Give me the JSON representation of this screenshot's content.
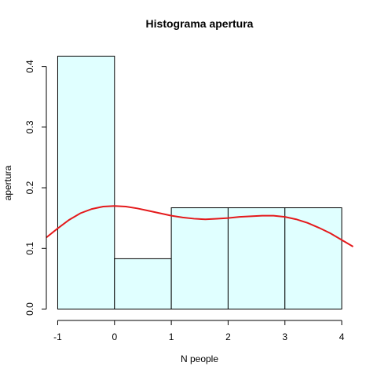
{
  "chart_data": {
    "type": "bar",
    "title": "Histograma  apertura",
    "xlabel": "N people",
    "ylabel": "apertura",
    "bins": [
      {
        "from": -1,
        "to": 0,
        "value": 0.417
      },
      {
        "from": 0,
        "to": 1,
        "value": 0.083
      },
      {
        "from": 1,
        "to": 2,
        "value": 0.167
      },
      {
        "from": 2,
        "to": 3,
        "value": 0.167
      },
      {
        "from": 3,
        "to": 4,
        "value": 0.167
      }
    ],
    "x_ticks": [
      "-1",
      "0",
      "1",
      "2",
      "3",
      "4"
    ],
    "y_ticks": [
      "0.0",
      "0.1",
      "0.2",
      "0.3",
      "0.4"
    ],
    "xlim": [
      -1.2,
      4.22
    ],
    "ylim": [
      0,
      0.417
    ],
    "density_curve": {
      "color": "#e41a1c",
      "x": [
        -1.2,
        -1.0,
        -0.8,
        -0.6,
        -0.4,
        -0.2,
        0.0,
        0.2,
        0.4,
        0.6,
        0.8,
        1.0,
        1.2,
        1.4,
        1.6,
        1.8,
        2.0,
        2.2,
        2.4,
        2.6,
        2.8,
        3.0,
        3.2,
        3.4,
        3.6,
        3.8,
        4.0,
        4.2
      ],
      "y": [
        0.118,
        0.133,
        0.147,
        0.158,
        0.165,
        0.169,
        0.17,
        0.169,
        0.166,
        0.162,
        0.158,
        0.154,
        0.151,
        0.149,
        0.148,
        0.149,
        0.15,
        0.152,
        0.153,
        0.154,
        0.154,
        0.152,
        0.148,
        0.142,
        0.134,
        0.125,
        0.114,
        0.103
      ]
    },
    "bar_fill": "#e0ffff",
    "bar_stroke": "#000000",
    "grid": false
  }
}
